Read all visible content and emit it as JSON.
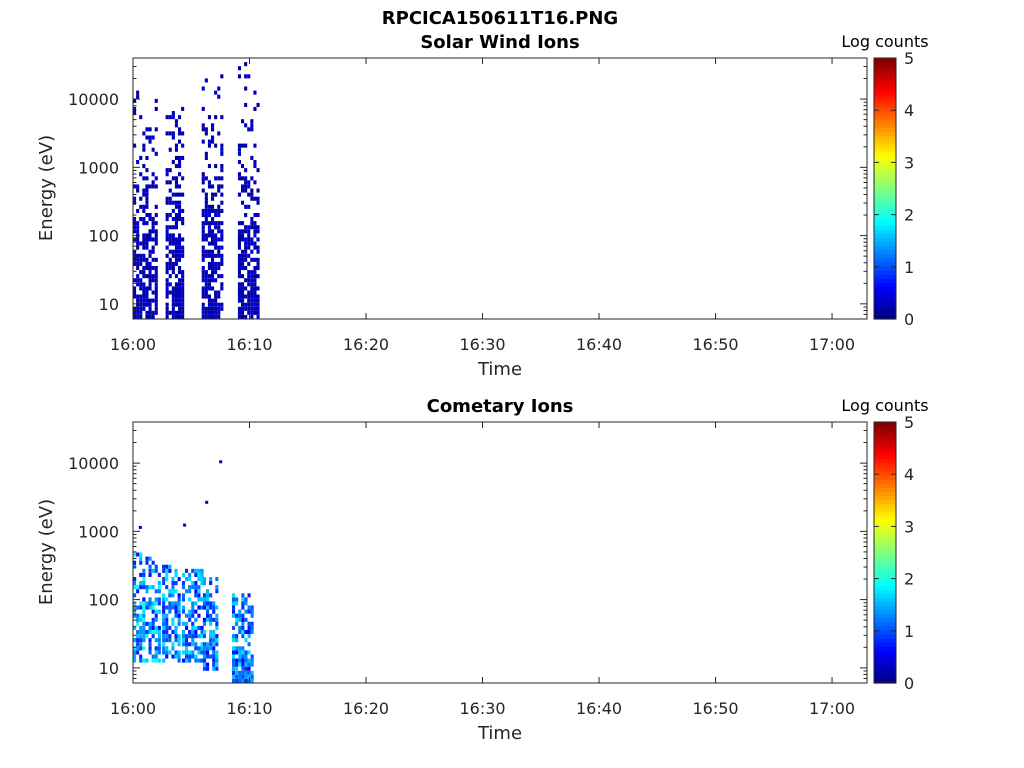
{
  "figure_title": "RPCICA150611T16.PNG",
  "chart_data": [
    {
      "type": "heatmap",
      "title": "Solar Wind Ions",
      "xlabel": "Time",
      "ylabel": "Energy (eV)",
      "x_ticks": [
        "16:00",
        "16:10",
        "16:20",
        "16:30",
        "16:40",
        "16:50",
        "17:00"
      ],
      "x_range": [
        "16:00",
        "17:03"
      ],
      "y_scale": "log",
      "y_ticks": [
        "10",
        "100",
        "1000",
        "10000"
      ],
      "y_range": [
        6,
        40000
      ],
      "colorbar": {
        "label": "Log counts",
        "ticks": [
          "0",
          "1",
          "2",
          "3",
          "4",
          "5"
        ],
        "range": [
          0,
          5
        ],
        "colormap": "jet"
      },
      "bursts": [
        {
          "time_start": "16:00",
          "time_end": "16:02",
          "energy_min": 6,
          "energy_max": 13000,
          "peak_log_counts": 0.4
        },
        {
          "time_start": "16:02.8",
          "time_end": "16:04.2",
          "energy_min": 6,
          "energy_max": 10000,
          "peak_log_counts": 0.4
        },
        {
          "time_start": "16:05.9",
          "time_end": "16:07.6",
          "energy_min": 6,
          "energy_max": 22000,
          "peak_log_counts": 0.4
        },
        {
          "time_start": "16:09.0",
          "time_end": "16:10.6",
          "energy_min": 6,
          "energy_max": 33000,
          "peak_log_counts": 0.4
        }
      ]
    },
    {
      "type": "heatmap",
      "title": "Cometary Ions",
      "xlabel": "Time",
      "ylabel": "Energy (eV)",
      "x_ticks": [
        "16:00",
        "16:10",
        "16:20",
        "16:30",
        "16:40",
        "16:50",
        "17:00"
      ],
      "x_range": [
        "16:00",
        "17:03"
      ],
      "y_scale": "log",
      "y_ticks": [
        "10",
        "100",
        "1000",
        "10000"
      ],
      "y_range": [
        6,
        40000
      ],
      "colorbar": {
        "label": "Log counts",
        "ticks": [
          "0",
          "1",
          "2",
          "3",
          "4",
          "5"
        ],
        "range": [
          0,
          5
        ],
        "colormap": "jet"
      },
      "bursts": [
        {
          "time_start": "16:00",
          "time_end": "16:02.2",
          "energy_min": 12,
          "energy_max": 450,
          "peak_log_counts": 2.0
        },
        {
          "time_start": "16:02.5",
          "time_end": "16:04.0",
          "energy_min": 12,
          "energy_max": 300,
          "peak_log_counts": 1.8
        },
        {
          "time_start": "16:04.2",
          "time_end": "16:06.0",
          "energy_min": 12,
          "energy_max": 250,
          "peak_log_counts": 1.8
        },
        {
          "time_start": "16:06.0",
          "time_end": "16:07.2",
          "energy_min": 10,
          "energy_max": 200,
          "peak_log_counts": 1.7
        },
        {
          "time_start": "16:08.5",
          "time_end": "16:10.2",
          "energy_min": 6,
          "energy_max": 120,
          "peak_log_counts": 1.8
        }
      ],
      "isolated_points": [
        {
          "time": "16:07.4",
          "energy": 11000
        },
        {
          "time": "16:06.2",
          "energy": 2800
        },
        {
          "time": "16:04.3",
          "energy": 1300
        },
        {
          "time": "16:00.5",
          "energy": 1200
        }
      ]
    }
  ]
}
